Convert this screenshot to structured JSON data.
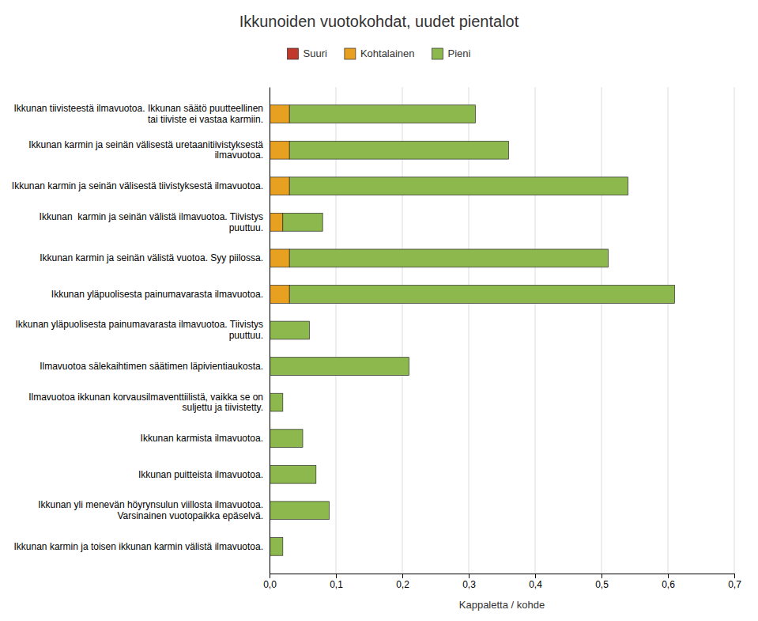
{
  "chart_data": {
    "type": "bar",
    "orientation": "horizontal",
    "stacked": true,
    "title": "Ikkunoiden vuotokohdat, uudet pientalot",
    "x_label": "Kappaletta / kohde",
    "categories": [
      "Ikkunan tiivisteestä ilmavuotoa. Ikkunan säätö puutteellinen\ntai tiiviste ei vastaa karmiin.",
      "Ikkunan karmin ja seinän välisestä uretaanitiivistyksestä\nilmavuotoa.",
      "Ikkunan karmin ja seinän välisestä tiivistyksestä ilmavuotoa.",
      "Ikkunan  karmin ja seinän välistä ilmavuotoa. Tiivistys\npuuttuu.",
      "Ikkunan karmin ja seinän välistä vuotoa. Syy piilossa.",
      "Ikkunan yläpuolisesta painumavarasta ilmavuotoa.",
      "Ikkunan yläpuolisesta painumavarasta ilmavuotoa. Tiivistys\npuuttuu.",
      "Ilmavuotoa sälekaihtimen säätimen läpivientiaukosta.",
      "Ilmavuotoa ikkunan korvausilmaventtiilistä, vaikka se on\nsuljettu ja tiivistetty.",
      "Ikkunan karmista ilmavuotoa.",
      "Ikkunan puitteista ilmavuotoa.",
      "Ikkunan yli menevän höyrynsulun viillosta ilmavuotoa.\nVarsinainen vuotopaikka epäselvä.",
      "Ikkunan karmin ja toisen ikkunan karmin välistä ilmavuotoa."
    ],
    "series": [
      {
        "name": "Suuri",
        "color": "#c0392b",
        "values": [
          0,
          0,
          0,
          0,
          0,
          0,
          0,
          0,
          0,
          0,
          0,
          0,
          0
        ]
      },
      {
        "name": "Kohtalainen",
        "color": "#e8a020",
        "values": [
          0.03,
          0.03,
          0.03,
          0.02,
          0.03,
          0.03,
          0,
          0,
          0,
          0,
          0,
          0,
          0
        ]
      },
      {
        "name": "Pieni",
        "color": "#8db84e",
        "values": [
          0.28,
          0.33,
          0.51,
          0.06,
          0.48,
          0.58,
          0.06,
          0.21,
          0.02,
          0.05,
          0.07,
          0.09,
          0.02
        ]
      }
    ],
    "xlim": [
      0,
      0.7
    ],
    "xticks": [
      {
        "value": 0.0,
        "label": "0,0"
      },
      {
        "value": 0.1,
        "label": "0,1"
      },
      {
        "value": 0.2,
        "label": "0,2"
      },
      {
        "value": 0.3,
        "label": "0,3"
      },
      {
        "value": 0.4,
        "label": "0,4"
      },
      {
        "value": 0.5,
        "label": "0,5"
      },
      {
        "value": 0.6,
        "label": "0,6"
      },
      {
        "value": 0.7,
        "label": "0,7"
      }
    ],
    "grid": true,
    "legend": "top"
  }
}
